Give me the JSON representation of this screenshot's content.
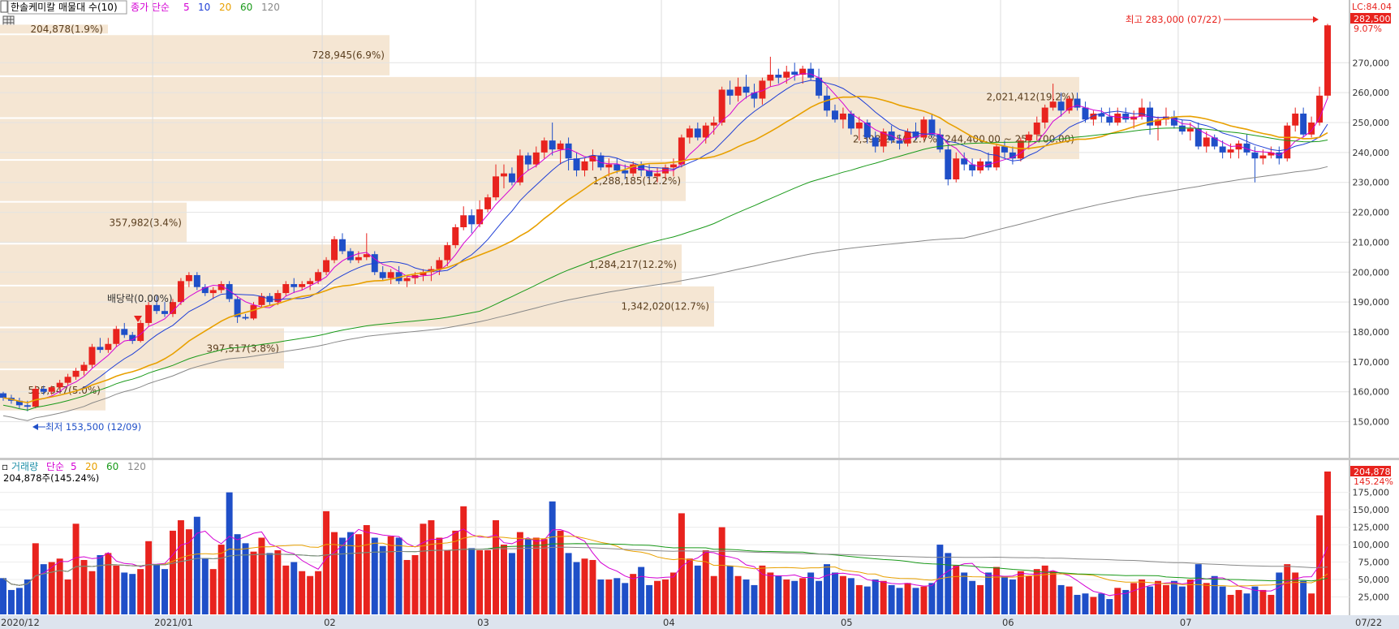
{
  "header": {
    "title": "한솔케미칼 매물대 수(10)",
    "ma_label": "종가 단순",
    "ma_periods": [
      "5",
      "10",
      "20",
      "60",
      "120"
    ],
    "ma_colors": [
      "#d400d4",
      "#1f3fd6",
      "#e8a000",
      "#1a9a1a",
      "#888888"
    ]
  },
  "price_axis": {
    "ticks": [
      "150,000",
      "160,000",
      "170,000",
      "180,000",
      "190,000",
      "200,000",
      "210,000",
      "220,000",
      "230,000",
      "240,000",
      "250,000",
      "260,000",
      "270,000"
    ],
    "lc_label": "LC:84.04",
    "current_price": "282,500",
    "change_pct": "9.07%"
  },
  "volume_axis": {
    "ticks": [
      "25,000",
      "50,000",
      "75,000",
      "100,000",
      "125,000",
      "150,000",
      "175,000"
    ],
    "current_volume": "204,878",
    "change_pct": "145.24%"
  },
  "volume_header": {
    "label": "거래량",
    "ma_label": "단순",
    "ma_periods": [
      "5",
      "20",
      "60",
      "120"
    ],
    "info": "204,878주(145.24%)"
  },
  "x_axis": {
    "labels": [
      {
        "label": "2020/12",
        "i": 0
      },
      {
        "label": "2021/01",
        "i": 19
      },
      {
        "label": "02",
        "i": 40
      },
      {
        "label": "03",
        "i": 59
      },
      {
        "label": "04",
        "i": 82
      },
      {
        "label": "05",
        "i": 104
      },
      {
        "label": "06",
        "i": 124
      },
      {
        "label": "07",
        "i": 146
      }
    ],
    "end_label": "07/22"
  },
  "annotations": {
    "high": "최고 283,000 (07/22)",
    "low": "최저 153,500 (12/09)",
    "dividend": "배당락(0.00%)"
  },
  "colors": {
    "up": "#e8231e",
    "down": "#1f4fc8",
    "zone": "#f5e6d3"
  },
  "chart_data": {
    "type": "candlestick",
    "title": "한솔케미칼 매물대 수(10)",
    "y_range": [
      145000,
      285000
    ],
    "volume_profile": [
      {
        "low": 153500,
        "high": 167500,
        "label": "525,547(5.0%)"
      },
      {
        "low": 167500,
        "high": 181500,
        "label": "397,517(3.8%)"
      },
      {
        "low": 181500,
        "high": 195500,
        "label": "1,342,020(12.7%)"
      },
      {
        "low": 195500,
        "high": 209500,
        "label": "1,284,217(12.2%)"
      },
      {
        "low": 209500,
        "high": 223500,
        "label": "357,982(3.4%)"
      },
      {
        "low": 223500,
        "high": 237500,
        "label": "1,288,185(12.2%)"
      },
      {
        "low": 237500,
        "high": 251500,
        "label": "2,398,215(22.7%)(244,400.00 ~ 257,700.00)"
      },
      {
        "low": 251500,
        "high": 265500,
        "label": "2,021,412(19.2%)"
      },
      {
        "low": 265500,
        "high": 279500,
        "label": "728,945(6.9%)"
      },
      {
        "low": 279500,
        "high": 283000,
        "label": "204,878(1.9%)"
      }
    ],
    "candles": [
      [
        159500,
        160000,
        157000,
        158000,
        52000
      ],
      [
        158000,
        159000,
        156000,
        157000,
        35000
      ],
      [
        157000,
        158000,
        154500,
        155500,
        38000
      ],
      [
        155500,
        157000,
        153500,
        155000,
        50000
      ],
      [
        155000,
        162000,
        154500,
        161000,
        102000
      ],
      [
        161000,
        162000,
        159000,
        160000,
        72000
      ],
      [
        160000,
        162000,
        159000,
        161500,
        75000
      ],
      [
        161500,
        164000,
        160500,
        163000,
        80000
      ],
      [
        163000,
        166000,
        162000,
        165000,
        50000
      ],
      [
        165000,
        168000,
        164000,
        167000,
        130000
      ],
      [
        167000,
        170000,
        165500,
        169000,
        78000
      ],
      [
        169000,
        176000,
        168000,
        175000,
        62000
      ],
      [
        175000,
        178000,
        173000,
        174000,
        85000
      ],
      [
        174000,
        178000,
        173000,
        176000,
        88000
      ],
      [
        176000,
        182000,
        175000,
        181000,
        70000
      ],
      [
        181000,
        183000,
        178000,
        179000,
        60000
      ],
      [
        179000,
        180000,
        176000,
        177000,
        58000
      ],
      [
        177000,
        184000,
        176500,
        183000,
        65000
      ],
      [
        183000,
        190000,
        182000,
        189000,
        105000
      ],
      [
        189000,
        192000,
        186000,
        187000,
        72000
      ],
      [
        187000,
        190000,
        185000,
        186000,
        65000
      ],
      [
        186000,
        191000,
        185000,
        190000,
        120000
      ],
      [
        190000,
        198000,
        189000,
        197000,
        135000
      ],
      [
        197000,
        200000,
        195000,
        199000,
        122000
      ],
      [
        199000,
        200000,
        194000,
        195000,
        140000
      ],
      [
        195000,
        196000,
        192000,
        193000,
        80000
      ],
      [
        193000,
        195000,
        191000,
        194000,
        65000
      ],
      [
        194000,
        197000,
        193000,
        196000,
        100000
      ],
      [
        196000,
        197000,
        190000,
        191000,
        175000
      ],
      [
        191000,
        192000,
        183000,
        185000,
        115000
      ],
      [
        185000,
        186000,
        184000,
        184500,
        102000
      ],
      [
        184500,
        190000,
        184000,
        189000,
        90000
      ],
      [
        189000,
        193000,
        188000,
        192000,
        110000
      ],
      [
        192000,
        193000,
        189000,
        190000,
        88000
      ],
      [
        190000,
        194000,
        189000,
        193000,
        92000
      ],
      [
        193000,
        197000,
        192000,
        196000,
        70000
      ],
      [
        196000,
        198000,
        193000,
        195000,
        75000
      ],
      [
        195000,
        197000,
        194000,
        196000,
        62000
      ],
      [
        196000,
        198000,
        194000,
        197000,
        55000
      ],
      [
        197000,
        201000,
        196000,
        200000,
        62000
      ],
      [
        200000,
        205000,
        199000,
        204000,
        148000
      ],
      [
        204000,
        212000,
        203000,
        211000,
        118000
      ],
      [
        211000,
        213000,
        206000,
        207000,
        110000
      ],
      [
        207000,
        208000,
        203000,
        204000,
        118000
      ],
      [
        204000,
        207000,
        203000,
        205000,
        115000
      ],
      [
        205000,
        213000,
        204000,
        206000,
        128000
      ],
      [
        206000,
        207000,
        199000,
        200000,
        110000
      ],
      [
        200000,
        202000,
        197000,
        198000,
        98000
      ],
      [
        198000,
        201000,
        196000,
        200000,
        112000
      ],
      [
        200000,
        202000,
        196000,
        197000,
        110000
      ],
      [
        197000,
        199000,
        195000,
        198000,
        78000
      ],
      [
        198000,
        200000,
        196000,
        199000,
        85000
      ],
      [
        199000,
        201000,
        197000,
        200000,
        130000
      ],
      [
        200000,
        202000,
        197000,
        201000,
        135000
      ],
      [
        201000,
        205000,
        199000,
        204000,
        110000
      ],
      [
        204000,
        210000,
        202000,
        209000,
        92000
      ],
      [
        209000,
        216000,
        208000,
        215000,
        120000
      ],
      [
        215000,
        222000,
        214000,
        219000,
        155000
      ],
      [
        219000,
        221000,
        213000,
        216000,
        95000
      ],
      [
        216000,
        224000,
        215000,
        221000,
        92000
      ],
      [
        221000,
        226000,
        220000,
        225000,
        92000
      ],
      [
        225000,
        236000,
        224000,
        232000,
        135000
      ],
      [
        232000,
        236000,
        228000,
        233000,
        100000
      ],
      [
        233000,
        235000,
        229000,
        230000,
        88000
      ],
      [
        230000,
        241000,
        229000,
        239000,
        118000
      ],
      [
        239000,
        240000,
        234000,
        236000,
        108000
      ],
      [
        236000,
        242000,
        235000,
        240000,
        110000
      ],
      [
        240000,
        245000,
        238000,
        244000,
        108000
      ],
      [
        244000,
        250000,
        239000,
        241000,
        162000
      ],
      [
        241000,
        244000,
        236000,
        243000,
        120000
      ],
      [
        243000,
        245000,
        234000,
        238000,
        88000
      ],
      [
        238000,
        240000,
        232000,
        234000,
        75000
      ],
      [
        234000,
        238000,
        232000,
        237000,
        80000
      ],
      [
        237000,
        241000,
        234000,
        239000,
        78000
      ],
      [
        239000,
        240000,
        234000,
        235000,
        50000
      ],
      [
        235000,
        238000,
        232000,
        236000,
        50000
      ],
      [
        236000,
        238000,
        233000,
        234000,
        52000
      ],
      [
        234000,
        236000,
        231000,
        233000,
        45000
      ],
      [
        233000,
        237000,
        232000,
        236000,
        58000
      ],
      [
        236000,
        237000,
        232000,
        234000,
        68000
      ],
      [
        234000,
        236000,
        231000,
        232000,
        42000
      ],
      [
        232000,
        235000,
        230000,
        233000,
        48000
      ],
      [
        233000,
        236000,
        231000,
        235000,
        50000
      ],
      [
        235000,
        238000,
        232000,
        236000,
        60000
      ],
      [
        236000,
        246000,
        235000,
        245000,
        145000
      ],
      [
        245000,
        249000,
        243000,
        248000,
        80000
      ],
      [
        248000,
        250000,
        244000,
        245000,
        70000
      ],
      [
        245000,
        250000,
        243000,
        249000,
        92000
      ],
      [
        249000,
        252000,
        246000,
        250000,
        55000
      ],
      [
        250000,
        262000,
        249000,
        261000,
        125000
      ],
      [
        261000,
        264000,
        256000,
        259000,
        70000
      ],
      [
        259000,
        265000,
        257000,
        262000,
        55000
      ],
      [
        262000,
        266000,
        258000,
        260000,
        50000
      ],
      [
        260000,
        263000,
        255000,
        258000,
        42000
      ],
      [
        258000,
        265000,
        256000,
        264000,
        70000
      ],
      [
        264000,
        272000,
        262000,
        266000,
        60000
      ],
      [
        266000,
        268000,
        263000,
        265000,
        55000
      ],
      [
        265000,
        269000,
        263000,
        267000,
        50000
      ],
      [
        267000,
        270000,
        264000,
        266000,
        48000
      ],
      [
        266000,
        269000,
        263000,
        268000,
        52000
      ],
      [
        268000,
        270000,
        264000,
        265000,
        60000
      ],
      [
        265000,
        268000,
        258000,
        259000,
        48000
      ],
      [
        259000,
        262000,
        252000,
        254000,
        72000
      ],
      [
        254000,
        256000,
        250000,
        251000,
        60000
      ],
      [
        251000,
        255000,
        248000,
        253000,
        55000
      ],
      [
        253000,
        254000,
        246000,
        248000,
        52000
      ],
      [
        248000,
        252000,
        244000,
        250000,
        42000
      ],
      [
        250000,
        251000,
        243000,
        245000,
        40000
      ],
      [
        245000,
        247000,
        240000,
        242000,
        50000
      ],
      [
        242000,
        248000,
        240000,
        247000,
        48000
      ],
      [
        247000,
        249000,
        243000,
        244000,
        42000
      ],
      [
        244000,
        246000,
        241000,
        243000,
        38000
      ],
      [
        243000,
        248000,
        242000,
        247000,
        45000
      ],
      [
        247000,
        250000,
        244000,
        245000,
        38000
      ],
      [
        245000,
        252000,
        244000,
        251000,
        40000
      ],
      [
        251000,
        253000,
        245000,
        246000,
        45000
      ],
      [
        246000,
        248000,
        240000,
        241000,
        100000
      ],
      [
        241000,
        243000,
        229000,
        231000,
        88000
      ],
      [
        231000,
        240000,
        230000,
        238000,
        70000
      ],
      [
        238000,
        240000,
        234000,
        236000,
        60000
      ],
      [
        236000,
        238000,
        232000,
        234000,
        48000
      ],
      [
        234000,
        238000,
        233000,
        237000,
        42000
      ],
      [
        237000,
        240000,
        234000,
        235000,
        60000
      ],
      [
        235000,
        243000,
        234000,
        242000,
        68000
      ],
      [
        242000,
        244000,
        238000,
        240000,
        55000
      ],
      [
        240000,
        242000,
        236000,
        238000,
        50000
      ],
      [
        238000,
        245000,
        237000,
        244000,
        62000
      ],
      [
        244000,
        247000,
        241000,
        246000,
        55000
      ],
      [
        246000,
        252000,
        244000,
        250000,
        65000
      ],
      [
        250000,
        256000,
        248000,
        255000,
        70000
      ],
      [
        255000,
        263000,
        254000,
        257000,
        62000
      ],
      [
        257000,
        260000,
        252000,
        254000,
        42000
      ],
      [
        254000,
        259000,
        253000,
        258000,
        40000
      ],
      [
        258000,
        260000,
        254000,
        255000,
        28000
      ],
      [
        255000,
        257000,
        250000,
        251000,
        30000
      ],
      [
        251000,
        254000,
        249000,
        253000,
        25000
      ],
      [
        253000,
        255000,
        250000,
        252000,
        30000
      ],
      [
        252000,
        255000,
        249000,
        250000,
        22000
      ],
      [
        250000,
        255000,
        249000,
        253000,
        38000
      ],
      [
        253000,
        255000,
        250000,
        251000,
        35000
      ],
      [
        251000,
        254000,
        248000,
        252000,
        45000
      ],
      [
        252000,
        258000,
        251000,
        255000,
        50000
      ],
      [
        255000,
        257000,
        246000,
        249000,
        40000
      ],
      [
        249000,
        252000,
        244000,
        251000,
        48000
      ],
      [
        251000,
        255000,
        249000,
        252000,
        42000
      ],
      [
        252000,
        254000,
        248000,
        249000,
        48000
      ],
      [
        249000,
        251000,
        246000,
        247000,
        40000
      ],
      [
        247000,
        250000,
        244000,
        248000,
        50000
      ],
      [
        248000,
        250000,
        241000,
        242000,
        72000
      ],
      [
        242000,
        247000,
        240000,
        245000,
        45000
      ],
      [
        245000,
        246000,
        241000,
        242000,
        55000
      ],
      [
        242000,
        244000,
        238000,
        240000,
        40000
      ],
      [
        240000,
        243000,
        238000,
        241000,
        28000
      ],
      [
        241000,
        244000,
        238000,
        243000,
        35000
      ],
      [
        243000,
        246000,
        239000,
        240000,
        30000
      ],
      [
        240000,
        242000,
        230000,
        238000,
        40000
      ],
      [
        238000,
        241000,
        236000,
        239000,
        35000
      ],
      [
        239000,
        242000,
        238000,
        240000,
        28000
      ],
      [
        240000,
        242000,
        236000,
        238000,
        60000
      ],
      [
        238000,
        250000,
        237000,
        249000,
        72000
      ],
      [
        249000,
        255000,
        247000,
        253000,
        60000
      ],
      [
        253000,
        255000,
        245000,
        246000,
        48000
      ],
      [
        246000,
        252000,
        245000,
        250000,
        30000
      ],
      [
        250000,
        262000,
        249000,
        259000,
        142000
      ],
      [
        259000,
        283000,
        258000,
        282500,
        204878
      ]
    ]
  }
}
